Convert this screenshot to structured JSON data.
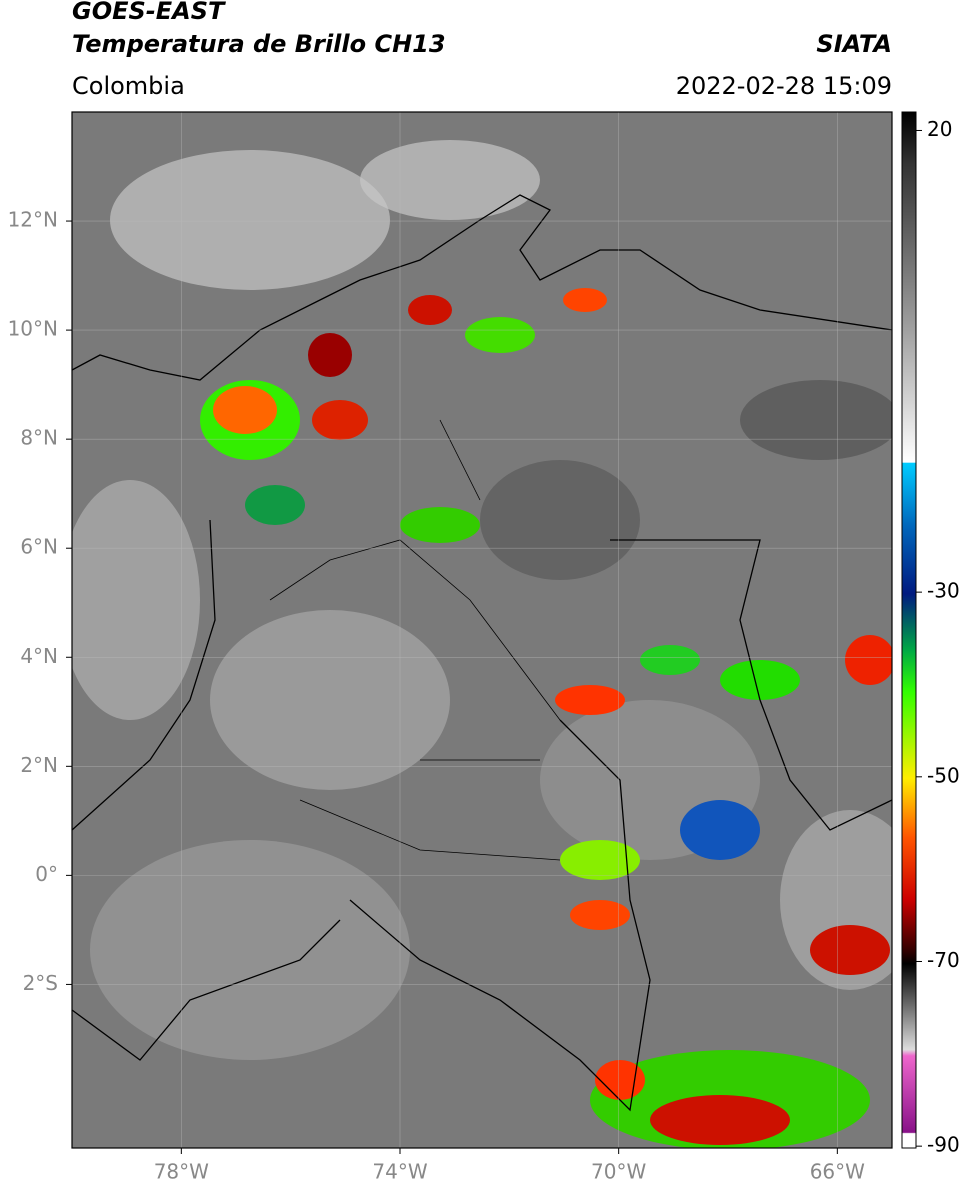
{
  "header": {
    "title": "GOES-EAST",
    "subtitle": "Temperatura de Brillo CH13",
    "source": "SIATA",
    "region": "Colombia",
    "datetime": "2022-02-28 15:09"
  },
  "map": {
    "xlim": [
      -80,
      -65
    ],
    "ylim": [
      -5,
      14
    ],
    "xticks": [
      {
        "value": -78,
        "label": "78°W"
      },
      {
        "value": -74,
        "label": "74°W"
      },
      {
        "value": -70,
        "label": "70°W"
      },
      {
        "value": -66,
        "label": "66°W"
      }
    ],
    "yticks": [
      {
        "value": 12,
        "label": "12°N"
      },
      {
        "value": 10,
        "label": "10°N"
      },
      {
        "value": 8,
        "label": "8°N"
      },
      {
        "value": 6,
        "label": "6°N"
      },
      {
        "value": 4,
        "label": "4°N"
      },
      {
        "value": 2,
        "label": "2°N"
      },
      {
        "value": 0,
        "label": "0°"
      },
      {
        "value": -2,
        "label": "2°S"
      }
    ],
    "grid": true
  },
  "colorbar": {
    "lim": [
      -90.2,
      22
    ],
    "ticks": [
      20,
      -30,
      -50,
      -70,
      -90
    ]
  }
}
